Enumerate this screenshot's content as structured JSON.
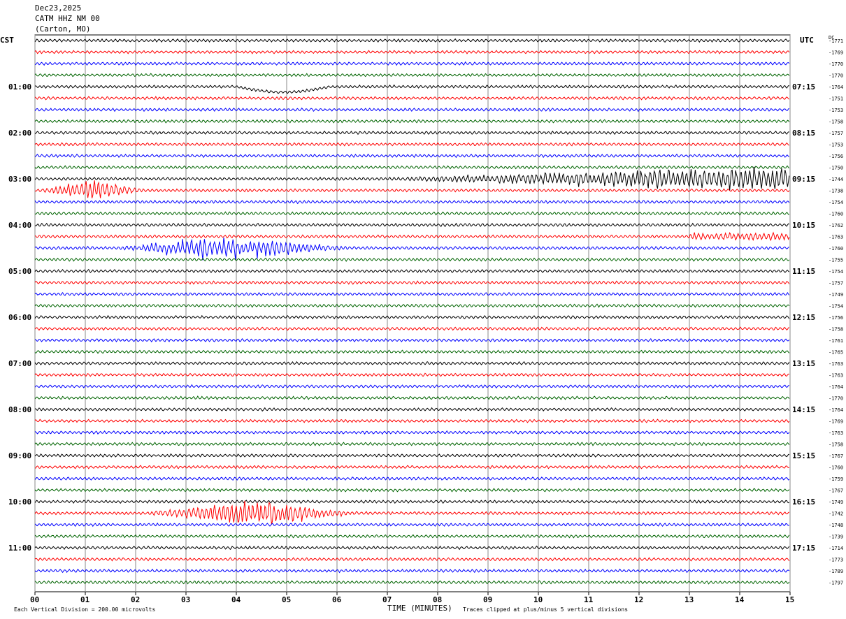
{
  "header": {
    "date": "Dec23,2025",
    "station": "CATM HHZ NM 00",
    "location": "(Carton, MO)"
  },
  "chart_data": {
    "type": "line",
    "title": "Dec23,2025 CATM HHZ NM 00 (Carton, MO)",
    "left_axis_label": "CST",
    "right_axis_label": "UTC",
    "dc_label": "DC",
    "xlabel": "TIME (MINUTES)",
    "xlim": [
      0,
      15
    ],
    "x_ticks": [
      "00",
      "01",
      "02",
      "03",
      "04",
      "05",
      "06",
      "07",
      "08",
      "09",
      "10",
      "11",
      "12",
      "13",
      "14",
      "15"
    ],
    "left_hour_labels": [
      "01:00",
      "02:00",
      "03:00",
      "04:00",
      "05:00",
      "06:00",
      "07:00",
      "08:00",
      "09:00",
      "10:00",
      "11:00"
    ],
    "right_hour_labels": [
      "07:15",
      "08:15",
      "09:15",
      "10:15",
      "11:15",
      "12:15",
      "13:15",
      "14:15",
      "15:15",
      "16:15",
      "17:15"
    ],
    "first_left_label": "CST",
    "first_right_label": "UTC",
    "trace_colors": [
      "#000000",
      "#ff0000",
      "#0000ff",
      "#006400"
    ],
    "trace_count": 48,
    "dc_offsets": [
      -1771,
      -1769,
      -1770,
      -1770,
      -1764,
      -1751,
      -1753,
      -1758,
      -1757,
      -1753,
      -1756,
      -1750,
      -1744,
      -1738,
      -1754,
      -1760,
      -1762,
      -1763,
      -1760,
      -1755,
      -1754,
      -1757,
      -1749,
      -1754,
      -1756,
      -1758,
      -1761,
      -1765,
      -1763,
      -1763,
      -1764,
      -1770,
      -1764,
      -1769,
      -1763,
      -1758,
      -1767,
      -1760,
      -1759,
      -1767,
      -1749,
      -1742,
      -1748,
      -1739,
      -1714,
      -1773,
      -1789,
      -1797
    ],
    "events": [
      {
        "trace": 4,
        "type": "long-period",
        "start": 4.0,
        "end": 7.0,
        "amplitude": 8
      },
      {
        "trace": 12,
        "type": "growing-noise",
        "start": 7.0,
        "end": 15.0,
        "amplitude": 16
      },
      {
        "trace": 13,
        "type": "burst",
        "start": 0.0,
        "end": 3.0,
        "amplitude": 12
      },
      {
        "trace": 17,
        "type": "noise",
        "start": 13.0,
        "end": 15.0,
        "amplitude": 4
      },
      {
        "trace": 18,
        "type": "burst",
        "start": 1.3,
        "end": 8.0,
        "amplitude": 14
      },
      {
        "trace": 41,
        "type": "burst",
        "start": 2.0,
        "end": 8.0,
        "amplitude": 16
      }
    ],
    "footer_left": "Each Vertical Division =  200.00 microvolts",
    "footer_right": "Traces clipped at plus/minus 5 vertical divisions",
    "grid": true
  }
}
